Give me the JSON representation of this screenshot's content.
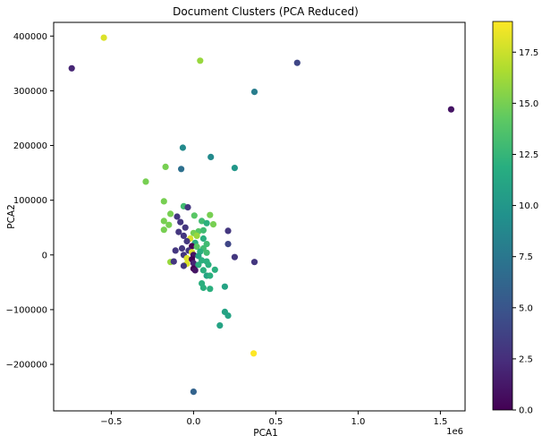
{
  "chart_data": {
    "type": "scatter",
    "title": "Document Clusters (PCA Reduced)",
    "xlabel": "PCA1",
    "ylabel": "PCA2",
    "x_scale_label": "1e6",
    "xlim": [
      -850000,
      1650000
    ],
    "ylim": [
      -285000,
      425000
    ],
    "x_ticks": [
      -0.5,
      0.0,
      0.5,
      1.0,
      1.5
    ],
    "x_tick_labels": [
      "−0.5",
      "0.0",
      "0.5",
      "1.0",
      "1.5"
    ],
    "y_ticks": [
      -200000,
      -100000,
      0,
      100000,
      200000,
      300000,
      400000
    ],
    "y_tick_labels": [
      "−200000",
      "−100000",
      "0",
      "100000",
      "200000",
      "300000",
      "400000"
    ],
    "colorbar": {
      "colormap": "viridis",
      "range": [
        0,
        19
      ],
      "ticks": [
        0,
        2.5,
        5,
        7.5,
        10,
        12.5,
        15,
        17.5
      ],
      "tick_labels": [
        "0.0",
        "2.5",
        "5.0",
        "7.5",
        "10.0",
        "12.5",
        "15.0",
        "17.5"
      ]
    },
    "grid": false,
    "points": [
      {
        "x": -740000,
        "y": 341000,
        "c": 2
      },
      {
        "x": -545000,
        "y": 397000,
        "c": 18
      },
      {
        "x": 40000,
        "y": 355000,
        "c": 16
      },
      {
        "x": 630000,
        "y": 351000,
        "c": 4
      },
      {
        "x": 370000,
        "y": 298000,
        "c": 8
      },
      {
        "x": 1565000,
        "y": 266000,
        "c": 1
      },
      {
        "x": -65000,
        "y": 196000,
        "c": 9
      },
      {
        "x": 105000,
        "y": 179000,
        "c": 9
      },
      {
        "x": -170000,
        "y": 161000,
        "c": 15
      },
      {
        "x": -75000,
        "y": 157000,
        "c": 7
      },
      {
        "x": 250000,
        "y": 159000,
        "c": 10
      },
      {
        "x": -290000,
        "y": 134000,
        "c": 15
      },
      {
        "x": -180000,
        "y": 98000,
        "c": 15
      },
      {
        "x": -60000,
        "y": 89000,
        "c": 13
      },
      {
        "x": -35000,
        "y": 87000,
        "c": 3
      },
      {
        "x": -140000,
        "y": 75000,
        "c": 15
      },
      {
        "x": -100000,
        "y": 70000,
        "c": 3
      },
      {
        "x": 5000,
        "y": 72000,
        "c": 14
      },
      {
        "x": 100000,
        "y": 73000,
        "c": 15
      },
      {
        "x": -180000,
        "y": 62000,
        "c": 15
      },
      {
        "x": 50000,
        "y": 62000,
        "c": 13
      },
      {
        "x": -80000,
        "y": 60000,
        "c": 3
      },
      {
        "x": 80000,
        "y": 58000,
        "c": 12
      },
      {
        "x": 120000,
        "y": 56000,
        "c": 15
      },
      {
        "x": -150000,
        "y": 55000,
        "c": 15
      },
      {
        "x": -50000,
        "y": 50000,
        "c": 3
      },
      {
        "x": -180000,
        "y": 46000,
        "c": 15
      },
      {
        "x": -90000,
        "y": 42000,
        "c": 3
      },
      {
        "x": 30000,
        "y": 43000,
        "c": 14
      },
      {
        "x": 60000,
        "y": 45000,
        "c": 13
      },
      {
        "x": 210000,
        "y": 44000,
        "c": 3
      },
      {
        "x": -60000,
        "y": 35000,
        "c": 3
      },
      {
        "x": 0,
        "y": 40000,
        "c": 15
      },
      {
        "x": -20000,
        "y": 30000,
        "c": 18
      },
      {
        "x": 20000,
        "y": 35000,
        "c": 16
      },
      {
        "x": 60000,
        "y": 30000,
        "c": 12
      },
      {
        "x": -40000,
        "y": 25000,
        "c": 3
      },
      {
        "x": 10000,
        "y": 22000,
        "c": 12
      },
      {
        "x": 80000,
        "y": 20000,
        "c": 13
      },
      {
        "x": 210000,
        "y": 20000,
        "c": 4
      },
      {
        "x": -10000,
        "y": 16000,
        "c": 0
      },
      {
        "x": 20000,
        "y": 15000,
        "c": 14
      },
      {
        "x": -70000,
        "y": 12000,
        "c": 3
      },
      {
        "x": 60000,
        "y": 12000,
        "c": 13
      },
      {
        "x": -110000,
        "y": 8000,
        "c": 3
      },
      {
        "x": -30000,
        "y": 8000,
        "c": 3
      },
      {
        "x": -10000,
        "y": 5000,
        "c": 18
      },
      {
        "x": 40000,
        "y": 6000,
        "c": 12
      },
      {
        "x": 80000,
        "y": 4000,
        "c": 13
      },
      {
        "x": -60000,
        "y": 0,
        "c": 3
      },
      {
        "x": 0,
        "y": 0,
        "c": 1
      },
      {
        "x": 30000,
        "y": -2000,
        "c": 11
      },
      {
        "x": 250000,
        "y": -4000,
        "c": 3
      },
      {
        "x": -40000,
        "y": -6000,
        "c": 18
      },
      {
        "x": -10000,
        "y": -8000,
        "c": 0
      },
      {
        "x": 50000,
        "y": -10000,
        "c": 12
      },
      {
        "x": 80000,
        "y": -12000,
        "c": 12
      },
      {
        "x": -140000,
        "y": -13000,
        "c": 16
      },
      {
        "x": -120000,
        "y": -12000,
        "c": 3
      },
      {
        "x": 370000,
        "y": -13000,
        "c": 3
      },
      {
        "x": -40000,
        "y": -16000,
        "c": 18
      },
      {
        "x": 0,
        "y": -15000,
        "c": 2
      },
      {
        "x": 30000,
        "y": -18000,
        "c": 12
      },
      {
        "x": 90000,
        "y": -18000,
        "c": 12
      },
      {
        "x": -60000,
        "y": -20000,
        "c": 3
      },
      {
        "x": 0,
        "y": -25000,
        "c": 0
      },
      {
        "x": 130000,
        "y": -27000,
        "c": 12
      },
      {
        "x": 10000,
        "y": -28000,
        "c": 1
      },
      {
        "x": 60000,
        "y": -28000,
        "c": 12
      },
      {
        "x": 80000,
        "y": -38000,
        "c": 11
      },
      {
        "x": 100000,
        "y": -38000,
        "c": 12
      },
      {
        "x": 50000,
        "y": -52000,
        "c": 12
      },
      {
        "x": 190000,
        "y": -58000,
        "c": 11
      },
      {
        "x": 60000,
        "y": -60000,
        "c": 12
      },
      {
        "x": 100000,
        "y": -62000,
        "c": 12
      },
      {
        "x": 190000,
        "y": -104000,
        "c": 11
      },
      {
        "x": 210000,
        "y": -111000,
        "c": 11
      },
      {
        "x": 160000,
        "y": -129000,
        "c": 11
      },
      {
        "x": 365000,
        "y": -180000,
        "c": 19
      },
      {
        "x": 0,
        "y": -250000,
        "c": 6
      }
    ]
  }
}
